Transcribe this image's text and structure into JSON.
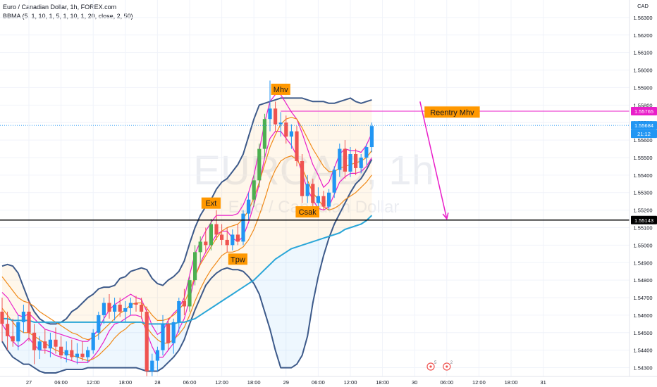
{
  "header": {
    "symbol": "Euro / Canadian Dollar, 1h, FOREX.com",
    "indicator": "BBMA (5, 1, 10, 1, 5, 1, 10, 1, 20, close, 2, 50)"
  },
  "watermark": {
    "ticker": "EURCAD, 1h",
    "name": "Euro / Canadian Dollar"
  },
  "currency_label": "CAD",
  "colors": {
    "up": "#2196f3",
    "down": "#ef5350",
    "extreme_up": "#4caf50",
    "upper_band": "#3d5a8a",
    "ma_fast": "#e91ec9",
    "ma_slow": "#f08a19",
    "ema50": "#2aa6d8",
    "annotation_bg": "#ff9800",
    "arrow": "#e91ec9",
    "support_line": "#000000"
  },
  "chart_data": {
    "type": "candlestick",
    "instrument": "EUR/CAD",
    "timeframe": "1h",
    "ylim": [
      1.5425,
      1.5638
    ],
    "y_ticks": [
      "1.56300",
      "1.56200",
      "1.56100",
      "1.56000",
      "1.55900",
      "1.55800",
      "1.55700",
      "1.55600",
      "1.55500",
      "1.55400",
      "1.55300",
      "1.55200",
      "1.55100",
      "1.55000",
      "1.54900",
      "1.54800",
      "1.54700",
      "1.54600",
      "1.54500",
      "1.54400",
      "1.54300"
    ],
    "x_ticks": [
      "27",
      "06:00",
      "12:00",
      "18:00",
      "28",
      "06:00",
      "12:00",
      "18:00",
      "29",
      "06:00",
      "12:00",
      "18:00",
      "30",
      "06:00",
      "12:00",
      "18:00",
      "31"
    ],
    "candles": [
      {
        "o": 1.5462,
        "h": 1.547,
        "l": 1.5445,
        "c": 1.5455
      },
      {
        "o": 1.5455,
        "h": 1.5462,
        "l": 1.544,
        "c": 1.5448
      },
      {
        "o": 1.5448,
        "h": 1.5458,
        "l": 1.5442,
        "c": 1.5445
      },
      {
        "o": 1.5445,
        "h": 1.546,
        "l": 1.544,
        "c": 1.5456
      },
      {
        "o": 1.5456,
        "h": 1.5466,
        "l": 1.545,
        "c": 1.5462
      },
      {
        "o": 1.5462,
        "h": 1.5468,
        "l": 1.5445,
        "c": 1.545
      },
      {
        "o": 1.545,
        "h": 1.5455,
        "l": 1.5432,
        "c": 1.544
      },
      {
        "o": 1.544,
        "h": 1.5448,
        "l": 1.5435,
        "c": 1.5445
      },
      {
        "o": 1.5445,
        "h": 1.5452,
        "l": 1.5438,
        "c": 1.5441
      },
      {
        "o": 1.5441,
        "h": 1.545,
        "l": 1.5436,
        "c": 1.5446
      },
      {
        "o": 1.5446,
        "h": 1.5453,
        "l": 1.5438,
        "c": 1.5442
      },
      {
        "o": 1.5442,
        "h": 1.5448,
        "l": 1.5435,
        "c": 1.5437
      },
      {
        "o": 1.5437,
        "h": 1.5445,
        "l": 1.5433,
        "c": 1.544
      },
      {
        "o": 1.544,
        "h": 1.5446,
        "l": 1.5434,
        "c": 1.5436
      },
      {
        "o": 1.5436,
        "h": 1.5444,
        "l": 1.5432,
        "c": 1.5438
      },
      {
        "o": 1.5438,
        "h": 1.5445,
        "l": 1.5434,
        "c": 1.5436
      },
      {
        "o": 1.5436,
        "h": 1.5442,
        "l": 1.5433,
        "c": 1.544
      },
      {
        "o": 1.544,
        "h": 1.5452,
        "l": 1.5438,
        "c": 1.545
      },
      {
        "o": 1.545,
        "h": 1.5462,
        "l": 1.5446,
        "c": 1.546
      },
      {
        "o": 1.546,
        "h": 1.547,
        "l": 1.5455,
        "c": 1.5467
      },
      {
        "o": 1.5467,
        "h": 1.5472,
        "l": 1.5458,
        "c": 1.5462
      },
      {
        "o": 1.5462,
        "h": 1.547,
        "l": 1.5457,
        "c": 1.5466
      },
      {
        "o": 1.5466,
        "h": 1.547,
        "l": 1.5459,
        "c": 1.5462
      },
      {
        "o": 1.5462,
        "h": 1.5468,
        "l": 1.5456,
        "c": 1.5464
      },
      {
        "o": 1.5464,
        "h": 1.547,
        "l": 1.546,
        "c": 1.5467
      },
      {
        "o": 1.5467,
        "h": 1.5471,
        "l": 1.5462,
        "c": 1.5466
      },
      {
        "o": 1.5466,
        "h": 1.547,
        "l": 1.5458,
        "c": 1.5462
      },
      {
        "o": 1.5462,
        "h": 1.5465,
        "l": 1.5425,
        "c": 1.5428
      },
      {
        "o": 1.5428,
        "h": 1.5438,
        "l": 1.5425,
        "c": 1.5434
      },
      {
        "o": 1.5434,
        "h": 1.5442,
        "l": 1.5428,
        "c": 1.544
      },
      {
        "o": 1.544,
        "h": 1.546,
        "l": 1.5437,
        "c": 1.5455
      },
      {
        "o": 1.5455,
        "h": 1.5458,
        "l": 1.544,
        "c": 1.5444
      },
      {
        "o": 1.5444,
        "h": 1.5458,
        "l": 1.5438,
        "c": 1.5456
      },
      {
        "o": 1.5456,
        "h": 1.547,
        "l": 1.545,
        "c": 1.5468
      },
      {
        "o": 1.5468,
        "h": 1.5475,
        "l": 1.546,
        "c": 1.5465
      },
      {
        "o": 1.5465,
        "h": 1.5482,
        "l": 1.5462,
        "c": 1.548
      },
      {
        "o": 1.548,
        "h": 1.55,
        "l": 1.5477,
        "c": 1.5496
      },
      {
        "o": 1.5496,
        "h": 1.5505,
        "l": 1.549,
        "c": 1.5502
      },
      {
        "o": 1.5502,
        "h": 1.551,
        "l": 1.5496,
        "c": 1.55
      },
      {
        "o": 1.55,
        "h": 1.5515,
        "l": 1.5497,
        "c": 1.5512
      },
      {
        "o": 1.5512,
        "h": 1.552,
        "l": 1.5503,
        "c": 1.5506
      },
      {
        "o": 1.5506,
        "h": 1.5512,
        "l": 1.55,
        "c": 1.5503
      },
      {
        "o": 1.5503,
        "h": 1.551,
        "l": 1.5496,
        "c": 1.55
      },
      {
        "o": 1.55,
        "h": 1.5509,
        "l": 1.5497,
        "c": 1.5506
      },
      {
        "o": 1.5506,
        "h": 1.5512,
        "l": 1.55,
        "c": 1.5502
      },
      {
        "o": 1.5502,
        "h": 1.552,
        "l": 1.55,
        "c": 1.5518
      },
      {
        "o": 1.5518,
        "h": 1.553,
        "l": 1.5514,
        "c": 1.5526
      },
      {
        "o": 1.5526,
        "h": 1.554,
        "l": 1.5522,
        "c": 1.5537
      },
      {
        "o": 1.5537,
        "h": 1.5558,
        "l": 1.5533,
        "c": 1.5555
      },
      {
        "o": 1.5555,
        "h": 1.5575,
        "l": 1.555,
        "c": 1.5572
      },
      {
        "o": 1.5572,
        "h": 1.5594,
        "l": 1.5565,
        "c": 1.5578
      },
      {
        "o": 1.5578,
        "h": 1.5582,
        "l": 1.5565,
        "c": 1.5569
      },
      {
        "o": 1.5569,
        "h": 1.5576,
        "l": 1.5562,
        "c": 1.557
      },
      {
        "o": 1.557,
        "h": 1.5574,
        "l": 1.5558,
        "c": 1.5562
      },
      {
        "o": 1.5562,
        "h": 1.5569,
        "l": 1.5555,
        "c": 1.5565
      },
      {
        "o": 1.5565,
        "h": 1.5568,
        "l": 1.5545,
        "c": 1.5548
      },
      {
        "o": 1.5548,
        "h": 1.5552,
        "l": 1.5524,
        "c": 1.5528
      },
      {
        "o": 1.5528,
        "h": 1.554,
        "l": 1.5524,
        "c": 1.5535
      },
      {
        "o": 1.5535,
        "h": 1.5538,
        "l": 1.552,
        "c": 1.5524
      },
      {
        "o": 1.5524,
        "h": 1.5533,
        "l": 1.5521,
        "c": 1.5528
      },
      {
        "o": 1.5528,
        "h": 1.5531,
        "l": 1.552,
        "c": 1.5522
      },
      {
        "o": 1.5522,
        "h": 1.5532,
        "l": 1.552,
        "c": 1.553
      },
      {
        "o": 1.553,
        "h": 1.5545,
        "l": 1.5527,
        "c": 1.5543
      },
      {
        "o": 1.5543,
        "h": 1.5558,
        "l": 1.5539,
        "c": 1.5555
      },
      {
        "o": 1.5555,
        "h": 1.556,
        "l": 1.5538,
        "c": 1.5542
      },
      {
        "o": 1.5542,
        "h": 1.5556,
        "l": 1.5539,
        "c": 1.5552
      },
      {
        "o": 1.5552,
        "h": 1.5555,
        "l": 1.554,
        "c": 1.5544
      },
      {
        "o": 1.5544,
        "h": 1.5552,
        "l": 1.5541,
        "c": 1.555
      },
      {
        "o": 1.555,
        "h": 1.5558,
        "l": 1.5546,
        "c": 1.5556
      },
      {
        "o": 1.5556,
        "h": 1.557,
        "l": 1.5553,
        "c": 1.5568
      }
    ],
    "extreme_candles": [
      35,
      36,
      37,
      39,
      47,
      48,
      49
    ],
    "series": [
      {
        "key": "upper_band",
        "values": [
          1.5488,
          1.5489,
          1.5488,
          1.5484,
          1.5476,
          1.5468,
          1.5462,
          1.5458,
          1.5456,
          1.5455,
          1.5455,
          1.5456,
          1.5458,
          1.5462,
          1.5464,
          1.5467,
          1.547,
          1.5472,
          1.5475,
          1.5476,
          1.5476,
          1.5477,
          1.5481,
          1.5482,
          1.5485,
          1.5486,
          1.5487,
          1.5486,
          1.5481,
          1.5478,
          1.5477,
          1.548,
          1.5482,
          1.5485,
          1.5491,
          1.5501,
          1.551,
          1.5517,
          1.5522,
          1.5526,
          1.5532,
          1.5536,
          1.5538,
          1.5542,
          1.5546,
          1.5552,
          1.5562,
          1.5572,
          1.558,
          1.5581,
          1.5582,
          1.5583,
          1.5584,
          1.5584,
          1.5584,
          1.5584,
          1.5584,
          1.5583,
          1.5582,
          1.5582,
          1.5582,
          1.5581,
          1.5581,
          1.5582,
          1.5583,
          1.5584,
          1.5582,
          1.5581,
          1.5582,
          1.5583
        ]
      },
      {
        "key": "lower_band",
        "values": [
          1.5445,
          1.544,
          1.5436,
          1.5434,
          1.5432,
          1.5432,
          1.543,
          1.5428,
          1.5427,
          1.5427,
          1.5427,
          1.5428,
          1.5429,
          1.5429,
          1.5429,
          1.5429,
          1.543,
          1.543,
          1.543,
          1.543,
          1.543,
          1.543,
          1.543,
          1.543,
          1.543,
          1.543,
          1.5429,
          1.5428,
          1.5428,
          1.5428,
          1.543,
          1.5433,
          1.5436,
          1.544,
          1.5446,
          1.5455,
          1.5463,
          1.547,
          1.5477,
          1.5481,
          1.5484,
          1.5486,
          1.5487,
          1.5486,
          1.5486,
          1.5485,
          1.5482,
          1.5478,
          1.5472,
          1.5462,
          1.5452,
          1.544,
          1.543,
          1.543,
          1.543,
          1.5432,
          1.5437,
          1.5448,
          1.5467,
          1.5482,
          1.5494,
          1.5504,
          1.5512,
          1.5518,
          1.5524,
          1.553,
          1.5535,
          1.5538,
          1.5543,
          1.5549
        ]
      },
      {
        "key": "ma_fast_high",
        "values": [
          1.5473,
          1.547,
          1.5465,
          1.546,
          1.5459,
          1.5461,
          1.5458,
          1.5455,
          1.5452,
          1.5451,
          1.545,
          1.5449,
          1.5448,
          1.5447,
          1.5446,
          1.5445,
          1.5445,
          1.5448,
          1.5452,
          1.5458,
          1.5463,
          1.5466,
          1.5468,
          1.547,
          1.5472,
          1.547,
          1.5469,
          1.5462,
          1.5454,
          1.5449,
          1.5451,
          1.5457,
          1.5461,
          1.5464,
          1.547,
          1.5483,
          1.5495,
          1.5502,
          1.5508,
          1.5513,
          1.5517,
          1.5517,
          1.5517,
          1.5517,
          1.5518,
          1.5523,
          1.553,
          1.554,
          1.5554,
          1.557,
          1.5582,
          1.5586,
          1.5586,
          1.5581,
          1.5576,
          1.5572,
          1.5564,
          1.5555,
          1.5546,
          1.554,
          1.5533,
          1.5536,
          1.5544,
          1.5552,
          1.5555,
          1.5554,
          1.5554,
          1.5553,
          1.5557,
          1.5564
        ]
      },
      {
        "key": "ma_fast_low",
        "values": [
          1.5455,
          1.545,
          1.5445,
          1.5442,
          1.5444,
          1.5447,
          1.5443,
          1.544,
          1.544,
          1.5439,
          1.5437,
          1.5436,
          1.5435,
          1.5434,
          1.5433,
          1.5433,
          1.5433,
          1.5436,
          1.544,
          1.5445,
          1.5451,
          1.5455,
          1.5456,
          1.5458,
          1.546,
          1.546,
          1.5459,
          1.545,
          1.5442,
          1.5436,
          1.5436,
          1.544,
          1.5444,
          1.5452,
          1.5458,
          1.5469,
          1.5482,
          1.549,
          1.5496,
          1.5501,
          1.5506,
          1.5508,
          1.5508,
          1.5504,
          1.5502,
          1.5505,
          1.5513,
          1.5523,
          1.5535,
          1.555,
          1.5561,
          1.5565,
          1.5565,
          1.5561,
          1.5557,
          1.5551,
          1.5541,
          1.5532,
          1.5526,
          1.5521,
          1.552,
          1.5522,
          1.5529,
          1.5536,
          1.5539,
          1.5541,
          1.5541,
          1.5542,
          1.5545,
          1.555
        ]
      },
      {
        "key": "ma_slow_high",
        "values": [
          1.5482,
          1.5478,
          1.5474,
          1.547,
          1.5468,
          1.5467,
          1.5465,
          1.5462,
          1.546,
          1.5458,
          1.5456,
          1.5454,
          1.5452,
          1.545,
          1.5449,
          1.5447,
          1.5446,
          1.5447,
          1.5449,
          1.5452,
          1.5455,
          1.5458,
          1.5461,
          1.5463,
          1.5466,
          1.5467,
          1.5467,
          1.5464,
          1.546,
          1.5457,
          1.5457,
          1.5458,
          1.546,
          1.5463,
          1.5467,
          1.5474,
          1.5482,
          1.5489,
          1.5494,
          1.5499,
          1.5504,
          1.5508,
          1.551,
          1.5511,
          1.5512,
          1.5515,
          1.552,
          1.5527,
          1.5536,
          1.5546,
          1.5556,
          1.5563,
          1.5569,
          1.5572,
          1.5573,
          1.5572,
          1.5567,
          1.5561,
          1.5555,
          1.555,
          1.5545,
          1.5542,
          1.5542,
          1.5544,
          1.5545,
          1.5546,
          1.5547,
          1.5548,
          1.555,
          1.5554
        ]
      },
      {
        "key": "ma_slow_low",
        "values": [
          1.5464,
          1.546,
          1.5456,
          1.5452,
          1.545,
          1.545,
          1.5448,
          1.5446,
          1.5444,
          1.5442,
          1.544,
          1.5439,
          1.5438,
          1.5437,
          1.5436,
          1.5435,
          1.5434,
          1.5435,
          1.5437,
          1.544,
          1.5443,
          1.5447,
          1.545,
          1.5452,
          1.5455,
          1.5456,
          1.5456,
          1.5453,
          1.5449,
          1.5446,
          1.5444,
          1.5444,
          1.5446,
          1.5449,
          1.5453,
          1.546,
          1.5468,
          1.5475,
          1.5481,
          1.5486,
          1.549,
          1.5494,
          1.5496,
          1.5496,
          1.5497,
          1.5499,
          1.5503,
          1.5509,
          1.5517,
          1.5526,
          1.5536,
          1.5543,
          1.5548,
          1.555,
          1.5551,
          1.5549,
          1.5544,
          1.5537,
          1.553,
          1.5526,
          1.5522,
          1.552,
          1.5521,
          1.5523,
          1.5526,
          1.5528,
          1.553,
          1.5533,
          1.5536,
          1.554
        ]
      },
      {
        "key": "ema50",
        "values": [
          1.5458,
          1.5458,
          1.5457,
          1.5457,
          1.5457,
          1.5457,
          1.5456,
          1.5456,
          1.5456,
          1.5456,
          1.5456,
          1.5456,
          1.5456,
          1.5456,
          1.5456,
          1.5456,
          1.5456,
          1.5456,
          1.5456,
          1.5456,
          1.5456,
          1.5456,
          1.5456,
          1.5456,
          1.5456,
          1.5456,
          1.5456,
          1.5455,
          1.5455,
          1.5455,
          1.5455,
          1.5455,
          1.5455,
          1.5456,
          1.5456,
          1.5457,
          1.5458,
          1.546,
          1.5462,
          1.5464,
          1.5466,
          1.5468,
          1.547,
          1.5472,
          1.5474,
          1.5476,
          1.5478,
          1.548,
          1.5483,
          1.5486,
          1.5489,
          1.5492,
          1.5494,
          1.5496,
          1.5498,
          1.5499,
          1.55,
          1.5501,
          1.5502,
          1.5503,
          1.5504,
          1.5505,
          1.5506,
          1.5507,
          1.5509,
          1.551,
          1.5511,
          1.5512,
          1.5514,
          1.5517
        ]
      }
    ],
    "annotations": [
      {
        "label": "Ext",
        "candle": 39,
        "price": 1.5524
      },
      {
        "label": "Tpw",
        "candle": 44,
        "price": 1.5492
      },
      {
        "label": "Csak",
        "candle": 57,
        "price": 1.5519
      },
      {
        "label": "Mhv",
        "candle": 52,
        "price": 1.5589
      },
      {
        "label": "Reentry Mhv",
        "candle": 84,
        "price": 1.5576
      }
    ],
    "horizontal_lines": [
      {
        "key": "support",
        "price": 1.55143,
        "label": "1.55143"
      },
      {
        "key": "reentry",
        "price": 1.55765,
        "label": "1.55765",
        "start_candle": 52
      }
    ],
    "arrow": {
      "from_candle": 78,
      "from_price": 1.5582,
      "to_candle": 83,
      "to_price": 1.5515
    },
    "last_price": {
      "price": 1.55684,
      "label": "1.55684",
      "countdown": "21:12"
    },
    "events": [
      {
        "label": "5",
        "candle": 80
      },
      {
        "label": "2",
        "candle": 83
      }
    ]
  }
}
